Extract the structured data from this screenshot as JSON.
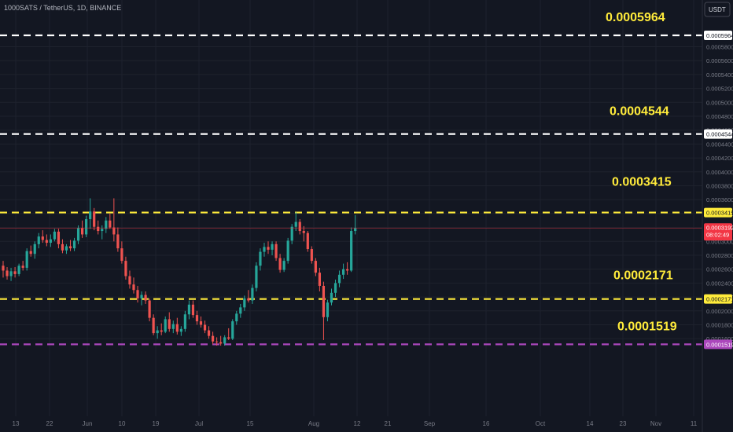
{
  "header": {
    "symbol_title": "1000SATS / TetherUS, 1D, BINANCE",
    "currency_button": "USDT"
  },
  "chart_data": {
    "type": "candlestick",
    "symbol": "1000SATS / TetherUS",
    "interval": "1D",
    "exchange": "BINANCE",
    "currency": "USDT",
    "grid": true,
    "colors": {
      "background": "#131722",
      "grid": "#1e222d",
      "up": "#26a69a",
      "down": "#ef5350",
      "white_level": "#ffffff",
      "yellow_level": "#ffeb3b",
      "purple_level": "#ab47bc",
      "price_tag": "#f23645"
    },
    "y_axis": {
      "ticks": [
        "0.0005800",
        "0.0005600",
        "0.0005400",
        "0.0005200",
        "0.0005000",
        "0.0004800",
        "0.0004600",
        "0.0004400",
        "0.0004200",
        "0.0004000",
        "0.0003800",
        "0.0003600",
        "0.0003400",
        "0.0003200",
        "0.0003000",
        "0.0002800",
        "0.0002600",
        "0.0002400",
        "0.0002200",
        "0.0002000",
        "0.0001800",
        "0.0001600"
      ],
      "tick_values": [
        0.00058,
        0.00056,
        0.00054,
        0.00052,
        0.0005,
        0.00048,
        0.00046,
        0.00044,
        0.00042,
        0.0004,
        0.00038,
        0.00036,
        0.00034,
        0.00032,
        0.0003,
        0.00028,
        0.00026,
        0.00024,
        0.00022,
        0.0002,
        0.00018,
        0.00016
      ]
    },
    "x_axis": {
      "ticks": [
        "13",
        "22",
        "Jun",
        "10",
        "19",
        "Jul",
        "15",
        "Aug",
        "12",
        "21",
        "Sep",
        "16",
        "Oct",
        "14",
        "23",
        "Nov",
        "11"
      ]
    },
    "levels": [
      {
        "label": "0.0005964",
        "value": 0.0005964,
        "color": "white"
      },
      {
        "label": "0.0004544",
        "value": 0.0004544,
        "color": "white"
      },
      {
        "label": "0.0003415",
        "value": 0.0003415,
        "color": "yellow"
      },
      {
        "label": "0.0002171",
        "value": 0.0002171,
        "color": "yellow"
      },
      {
        "label": "0.0001519",
        "value": 0.0001519,
        "color": "purple"
      }
    ],
    "last_price": {
      "value": "0.0003192",
      "countdown": "08:02:49",
      "numeric": 0.0003192
    },
    "candles": [
      [
        0.000265,
        0.000272,
        0.000248,
        0.000258
      ],
      [
        0.000258,
        0.000263,
        0.000245,
        0.00025
      ],
      [
        0.00025,
        0.000262,
        0.000243,
        0.000257
      ],
      [
        0.000257,
        0.000263,
        0.000248,
        0.000253
      ],
      [
        0.000253,
        0.000268,
        0.00025,
        0.000265
      ],
      [
        0.000265,
        0.000272,
        0.000258,
        0.000262
      ],
      [
        0.000262,
        0.00029,
        0.000258,
        0.000286
      ],
      [
        0.000286,
        0.000294,
        0.000278,
        0.000282
      ],
      [
        0.000282,
        0.0003,
        0.000275,
        0.000296
      ],
      [
        0.000296,
        0.000312,
        0.00029,
        0.000307
      ],
      [
        0.000307,
        0.000316,
        0.000298,
        0.000302
      ],
      [
        0.000302,
        0.00031,
        0.000293,
        0.000298
      ],
      [
        0.000298,
        0.00031,
        0.000292,
        0.000303
      ],
      [
        0.000303,
        0.000318,
        0.0003,
        0.000314
      ],
      [
        0.000314,
        0.000318,
        0.00029,
        0.000296
      ],
      [
        0.000296,
        0.000303,
        0.000283,
        0.000287
      ],
      [
        0.000287,
        0.000296,
        0.000282,
        0.000293
      ],
      [
        0.000293,
        0.000302,
        0.000286,
        0.00029
      ],
      [
        0.00029,
        0.000305,
        0.000286,
        0.000301
      ],
      [
        0.000301,
        0.000323,
        0.000296,
        0.000319
      ],
      [
        0.000319,
        0.00033,
        0.000305,
        0.00031
      ],
      [
        0.00031,
        0.000337,
        0.000306,
        0.000332
      ],
      [
        0.000332,
        0.000362,
        0.000318,
        0.000343
      ],
      [
        0.000343,
        0.000348,
        0.000316,
        0.000321
      ],
      [
        0.000321,
        0.00033,
        0.00031,
        0.000315
      ],
      [
        0.000315,
        0.000323,
        0.000303,
        0.000318
      ],
      [
        0.000318,
        0.000335,
        0.000312,
        0.00033
      ],
      [
        0.00033,
        0.00034,
        0.000318,
        0.00032
      ],
      [
        0.00032,
        0.000362,
        0.0003,
        0.00031
      ],
      [
        0.00031,
        0.00032,
        0.000285,
        0.00029
      ],
      [
        0.00029,
        0.0003,
        0.000268,
        0.000272
      ],
      [
        0.000272,
        0.000278,
        0.000245,
        0.00025
      ],
      [
        0.00025,
        0.000258,
        0.000232,
        0.000238
      ],
      [
        0.000238,
        0.000248,
        0.000225,
        0.00023
      ],
      [
        0.00023,
        0.000236,
        0.000212,
        0.000218
      ],
      [
        0.000218,
        0.000228,
        0.000208,
        0.000223
      ],
      [
        0.000223,
        0.000228,
        0.00021,
        0.000215
      ],
      [
        0.000215,
        0.000218,
        0.000185,
        0.00019
      ],
      [
        0.00019,
        0.000195,
        0.000165,
        0.000168
      ],
      [
        0.000168,
        0.000178,
        0.00016,
        0.000172
      ],
      [
        0.000172,
        0.000182,
        0.000165,
        0.00017
      ],
      [
        0.00017,
        0.000192,
        0.000168,
        0.000188
      ],
      [
        0.000188,
        0.000198,
        0.00017,
        0.000174
      ],
      [
        0.000174,
        0.000186,
        0.000168,
        0.000181
      ],
      [
        0.000181,
        0.00019,
        0.000166,
        0.00017
      ],
      [
        0.00017,
        0.000178,
        0.000164,
        0.000174
      ],
      [
        0.000174,
        0.0002,
        0.00017,
        0.000195
      ],
      [
        0.000195,
        0.000215,
        0.000188,
        0.000209
      ],
      [
        0.000209,
        0.000215,
        0.00019,
        0.000194
      ],
      [
        0.000194,
        0.0002,
        0.00018,
        0.000185
      ],
      [
        0.000185,
        0.000192,
        0.000176,
        0.00018
      ],
      [
        0.00018,
        0.000186,
        0.000168,
        0.000172
      ],
      [
        0.000172,
        0.000178,
        0.00016,
        0.000164
      ],
      [
        0.000164,
        0.00017,
        0.000152,
        0.000156
      ],
      [
        0.000156,
        0.000162,
        0.00015,
        0.000155
      ],
      [
        0.000155,
        0.000164,
        0.00015,
        0.000153
      ],
      [
        0.000153,
        0.000165,
        0.00015,
        0.000162
      ],
      [
        0.000162,
        0.000175,
        0.000158,
        0.00016
      ],
      [
        0.00016,
        0.000188,
        0.000158,
        0.000185
      ],
      [
        0.000185,
        0.0002,
        0.00018,
        0.000196
      ],
      [
        0.000196,
        0.00021,
        0.00019,
        0.000205
      ],
      [
        0.000205,
        0.000222,
        0.0002,
        0.000218
      ],
      [
        0.000218,
        0.00023,
        0.000212,
        0.000215
      ],
      [
        0.000215,
        0.000238,
        0.00021,
        0.000233
      ],
      [
        0.000233,
        0.00027,
        0.000228,
        0.000265
      ],
      [
        0.000265,
        0.00029,
        0.000258,
        0.000285
      ],
      [
        0.000285,
        0.000298,
        0.000278,
        0.000292
      ],
      [
        0.000292,
        0.0003,
        0.000282,
        0.000288
      ],
      [
        0.000288,
        0.0003,
        0.00028,
        0.000296
      ],
      [
        0.000296,
        0.0003,
        0.000272,
        0.000276
      ],
      [
        0.000276,
        0.000282,
        0.000255,
        0.000259
      ],
      [
        0.000259,
        0.000276,
        0.000256,
        0.000272
      ],
      [
        0.000272,
        0.000305,
        0.000268,
        0.000301
      ],
      [
        0.000301,
        0.000325,
        0.000296,
        0.000321
      ],
      [
        0.000321,
        0.000342,
        0.000315,
        0.000328
      ],
      [
        0.000328,
        0.000332,
        0.00031,
        0.000315
      ],
      [
        0.000315,
        0.000322,
        0.0003,
        0.000312
      ],
      [
        0.000312,
        0.000315,
        0.000285,
        0.000289
      ],
      [
        0.000289,
        0.000293,
        0.000268,
        0.000272
      ],
      [
        0.000272,
        0.000276,
        0.00025,
        0.000255
      ],
      [
        0.000255,
        0.000262,
        0.000228,
        0.000236
      ],
      [
        0.000236,
        0.000242,
        0.000158,
        0.000191
      ],
      [
        0.000191,
        0.000216,
        0.000185,
        0.000212
      ],
      [
        0.000212,
        0.000232,
        0.000208,
        0.000226
      ],
      [
        0.000226,
        0.000245,
        0.00022,
        0.00024
      ],
      [
        0.00024,
        0.000258,
        0.000234,
        0.000252
      ],
      [
        0.000252,
        0.000268,
        0.000246,
        0.00026
      ],
      [
        0.00026,
        0.00027,
        0.000252,
        0.000258
      ],
      [
        0.000258,
        0.00032,
        0.000256,
        0.000315
      ],
      [
        0.000315,
        0.000338,
        0.00031,
        0.000319
      ]
    ]
  }
}
